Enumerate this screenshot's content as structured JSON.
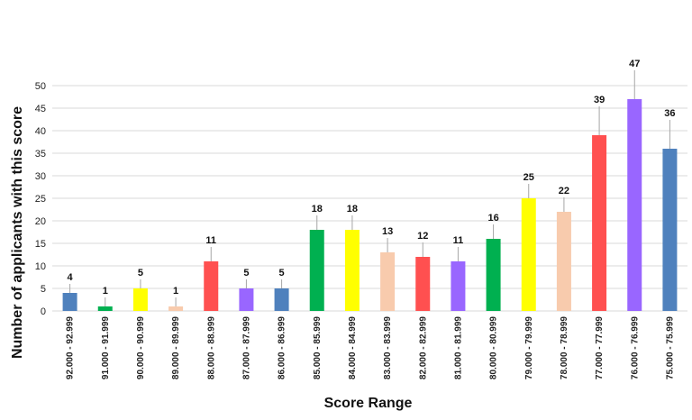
{
  "chart_data": {
    "type": "bar",
    "title": "",
    "xlabel": "Score Range",
    "ylabel": "Number of applicants with this score",
    "ylim": [
      0,
      50
    ],
    "yticks": [
      0,
      5,
      10,
      15,
      20,
      25,
      30,
      35,
      40,
      45,
      50
    ],
    "grid": "horizontal",
    "legend": "none",
    "categories": [
      "92.000 - 92.999",
      "91.000 - 91.999",
      "90.000 - 90.999",
      "89.000 - 89.999",
      "88.000 - 88.999",
      "87.000 - 87.999",
      "86.000 - 86.999",
      "85.000 - 85.999",
      "84.000 - 84.999",
      "83.000 - 83.999",
      "82.000 - 82.999",
      "81.000 - 81.999",
      "80.000 - 80.999",
      "79.000 - 79.999",
      "78.000 - 78.999",
      "77.000 - 77.999",
      "76.000 - 76.999",
      "75.000 - 75.999"
    ],
    "values": [
      4,
      1,
      5,
      1,
      11,
      5,
      5,
      18,
      18,
      13,
      12,
      11,
      16,
      25,
      22,
      39,
      47,
      36
    ],
    "colors": [
      "#4f81bd",
      "#00b050",
      "#ffff00",
      "#f8cbad",
      "#ff5050",
      "#9966ff",
      "#4f81bd",
      "#00b050",
      "#ffff00",
      "#f8cbad",
      "#ff5050",
      "#9966ff",
      "#00b050",
      "#ffff00",
      "#f8cbad",
      "#ff5050",
      "#9966ff",
      "#4f81bd"
    ],
    "gridline_color": "#d9d9d9",
    "leader_line_color": "#a6a6a6"
  }
}
